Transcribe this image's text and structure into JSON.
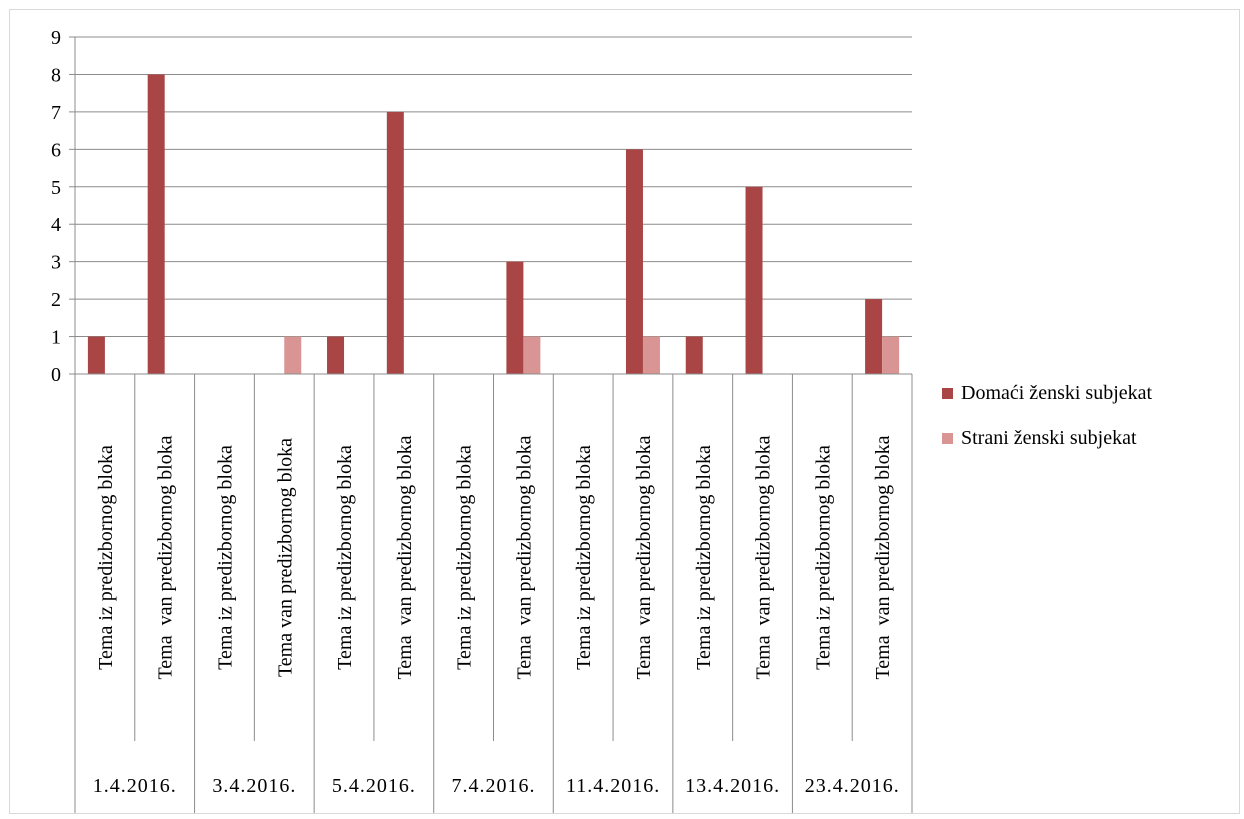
{
  "chart_data": {
    "type": "bar",
    "title": "",
    "xlabel": "",
    "ylabel": "",
    "ylim": [
      0,
      9
    ],
    "yticks": [
      "0",
      "1",
      "2",
      "3",
      "4",
      "5",
      "6",
      "7",
      "8",
      "9"
    ],
    "grid": true,
    "legend_position": "right",
    "groups": [
      {
        "label": "1.4.2016.",
        "categories": [
          "Tema iz predizbornog bloka",
          "Tema  van predizbornog bloka"
        ]
      },
      {
        "label": "3.4.2016.",
        "categories": [
          "Tema iz predizbornog bloka",
          "Tema van predizbornog bloka"
        ]
      },
      {
        "label": "5.4.2016.",
        "categories": [
          "Tema iz predizbornog bloka",
          "Tema  van predizbornog bloka"
        ]
      },
      {
        "label": "7.4.2016.",
        "categories": [
          "Tema iz predizbornog bloka",
          "Tema  van predizbornog bloka"
        ]
      },
      {
        "label": "11.4.2016.",
        "categories": [
          "Tema iz predizbornog bloka",
          "Tema  van predizbornog bloka"
        ]
      },
      {
        "label": "13.4.2016.",
        "categories": [
          "Tema iz predizbornog bloka",
          "Tema  van predizbornog bloka"
        ]
      },
      {
        "label": "23.4.2016.",
        "categories": [
          "Tema iz predizbornog bloka",
          "Tema  van predizbornog bloka"
        ]
      }
    ],
    "series": [
      {
        "name": "Domaći ženski subjekat",
        "color": "#a94545",
        "values": [
          1,
          8,
          0,
          0,
          1,
          7,
          0,
          3,
          0,
          6,
          1,
          5,
          0,
          2
        ]
      },
      {
        "name": "Strani ženski subjekat",
        "color": "#d99594",
        "values": [
          0,
          0,
          0,
          1,
          0,
          0,
          0,
          1,
          0,
          1,
          0,
          0,
          0,
          1
        ]
      }
    ]
  }
}
